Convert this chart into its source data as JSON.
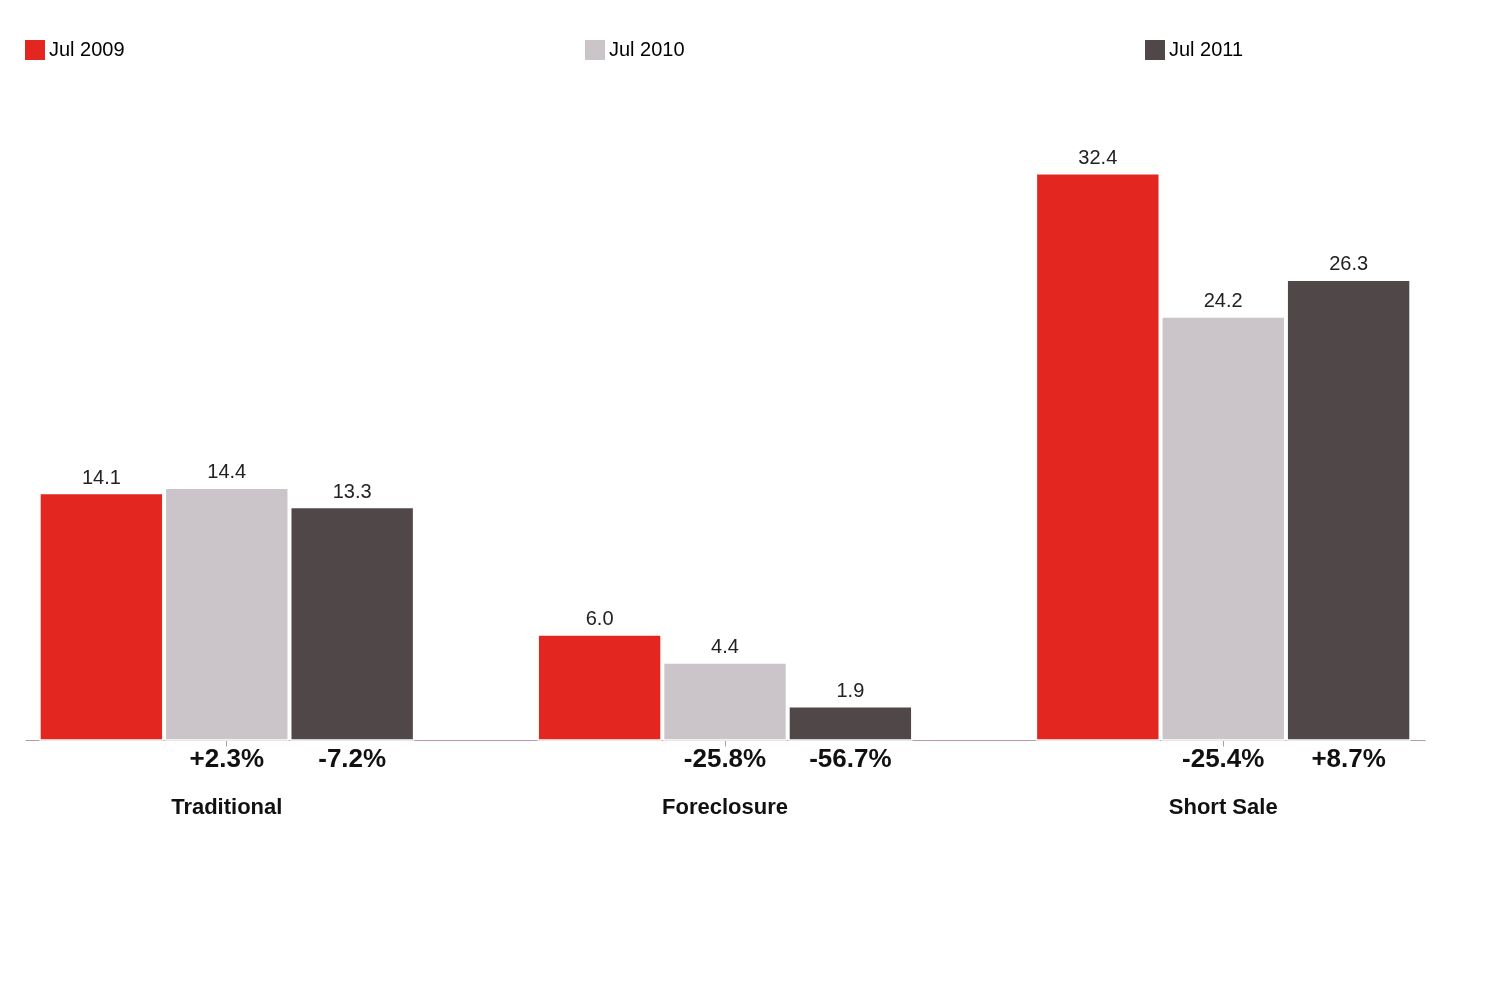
{
  "chart_data": {
    "type": "bar",
    "categories": [
      "Traditional",
      "Foreclosure",
      "Short Sale"
    ],
    "series": [
      {
        "name": "Jul 2009",
        "color": "#e3261f",
        "values": [
          14.1,
          6.0,
          32.4
        ],
        "value_labels": [
          "14.1",
          "6.0",
          "32.4"
        ]
      },
      {
        "name": "Jul 2010",
        "color": "#cbc5ca",
        "values": [
          14.4,
          4.4,
          24.2
        ],
        "value_labels": [
          "14.4",
          "4.4",
          "24.2"
        ]
      },
      {
        "name": "Jul 2011",
        "color": "#4f4748",
        "values": [
          13.3,
          1.9,
          26.3
        ],
        "value_labels": [
          "13.3",
          "1.9",
          "26.3"
        ]
      }
    ],
    "legend": "top",
    "grid": false,
    "annotations": [
      "+2.3%",
      "-7.2%",
      "-25.8%",
      "-56.7%",
      "-25.4%",
      "+8.7%"
    ]
  }
}
